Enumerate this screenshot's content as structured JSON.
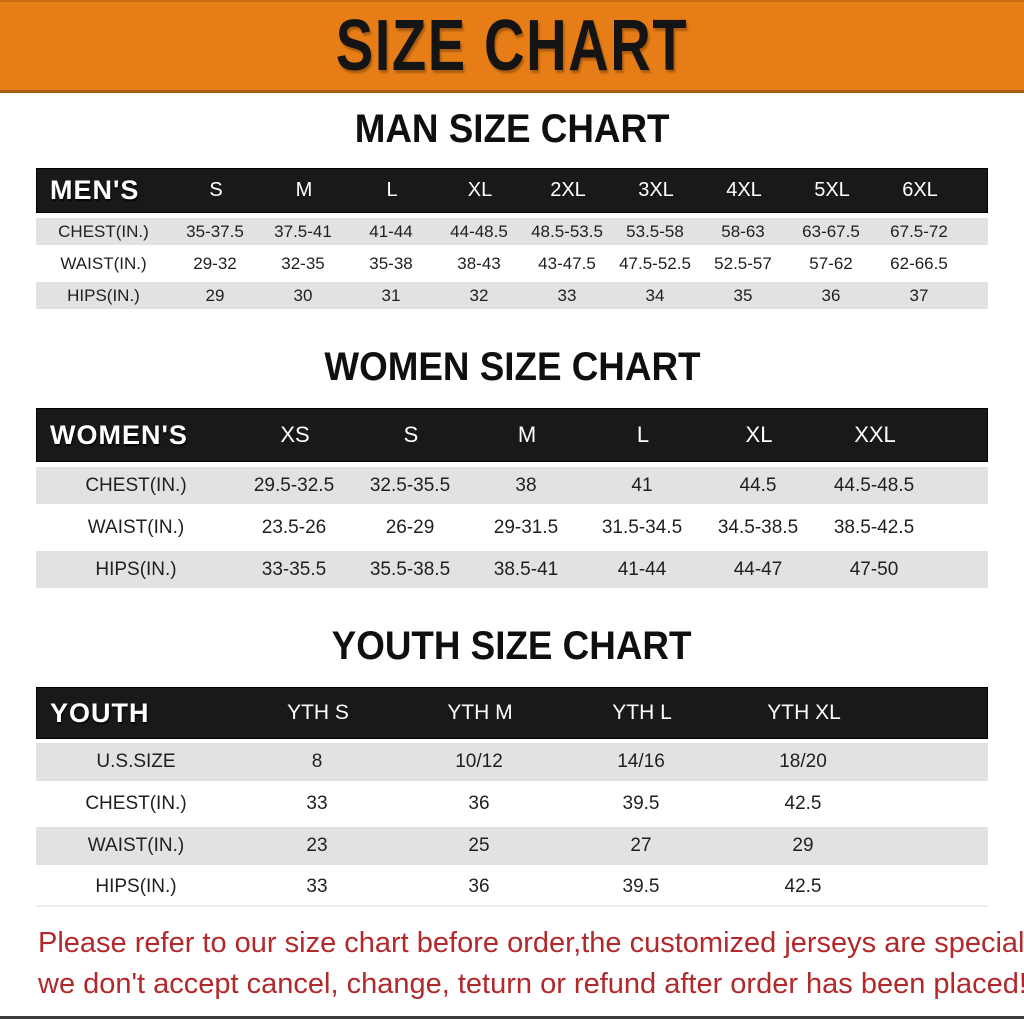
{
  "banner": {
    "title": "SIZE CHART",
    "bg_color": "#e67d17"
  },
  "sections": [
    {
      "title": "MAN SIZE CHART",
      "corner": "MEN'S",
      "columns": [
        "S",
        "M",
        "L",
        "XL",
        "2XL",
        "3XL",
        "4XL",
        "5XL",
        "6XL"
      ],
      "rows": [
        {
          "label": "CHEST(IN.)",
          "values": [
            "35-37.5",
            "37.5-41",
            "41-44",
            "44-48.5",
            "48.5-53.5",
            "53.5-58",
            "58-63",
            "63-67.5",
            "67.5-72"
          ]
        },
        {
          "label": "WAIST(IN.)",
          "values": [
            "29-32",
            "32-35",
            "35-38",
            "38-43",
            "43-47.5",
            "47.5-52.5",
            "52.5-57",
            "57-62",
            "62-66.5"
          ]
        },
        {
          "label": "HIPS(IN.)",
          "values": [
            "29",
            "30",
            "31",
            "32",
            "33",
            "34",
            "35",
            "36",
            "37"
          ]
        }
      ]
    },
    {
      "title": "WOMEN SIZE CHART",
      "corner": "WOMEN'S",
      "columns": [
        "XS",
        "S",
        "M",
        "L",
        "XL",
        "XXL"
      ],
      "rows": [
        {
          "label": "CHEST(IN.)",
          "values": [
            "29.5-32.5",
            "32.5-35.5",
            "38",
            "41",
            "44.5",
            "44.5-48.5"
          ]
        },
        {
          "label": "WAIST(IN.)",
          "values": [
            "23.5-26",
            "26-29",
            "29-31.5",
            "31.5-34.5",
            "34.5-38.5",
            "38.5-42.5"
          ]
        },
        {
          "label": "HIPS(IN.)",
          "values": [
            "33-35.5",
            "35.5-38.5",
            "38.5-41",
            "41-44",
            "44-47",
            "47-50"
          ]
        }
      ]
    },
    {
      "title": "YOUTH SIZE CHART",
      "corner": "YOUTH",
      "columns": [
        "YTH S",
        "YTH M",
        "YTH L",
        "YTH XL"
      ],
      "rows": [
        {
          "label": "U.S.SIZE",
          "values": [
            "8",
            "10/12",
            "14/16",
            "18/20"
          ]
        },
        {
          "label": "CHEST(IN.)",
          "values": [
            "33",
            "36",
            "39.5",
            "42.5"
          ]
        },
        {
          "label": "WAIST(IN.)",
          "values": [
            "23",
            "25",
            "27",
            "29"
          ]
        },
        {
          "label": "HIPS(IN.)",
          "values": [
            "33",
            "36",
            "39.5",
            "42.5"
          ]
        }
      ]
    }
  ],
  "footer": {
    "line1": "Please refer to our size chart before order,the customized jerseys are special products,",
    "line2": "we don't accept cancel, change, teturn or refund after order has been placed!",
    "text_color": "#b3282b"
  },
  "style_colors": {
    "header_band": "#191919",
    "shaded_row": "#e2e2e2"
  }
}
